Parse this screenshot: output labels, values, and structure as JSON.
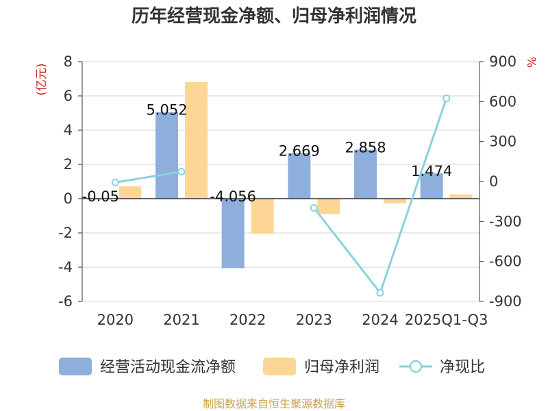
{
  "chart_data": {
    "type": "bar",
    "title": "历年经营现金净额、归母净利润情况",
    "categories": [
      "2020",
      "2021",
      "2022",
      "2023",
      "2024",
      "2025Q1-Q3"
    ],
    "series": [
      {
        "name": "经营活动现金流净额",
        "type": "bar",
        "axis": "left",
        "color": "#8eaedb",
        "values": [
          -0.05,
          5.052,
          -4.056,
          2.669,
          2.858,
          1.474
        ],
        "labels": [
          "-0.05",
          "5.052",
          "-4.056",
          "2.669",
          "2.858",
          "1.474"
        ]
      },
      {
        "name": "归母净利润",
        "type": "bar",
        "axis": "left",
        "color": "#fdd695",
        "values": [
          0.72,
          6.8,
          -2.05,
          -0.9,
          -0.28,
          0.25
        ]
      },
      {
        "name": "净现比",
        "type": "line",
        "axis": "right",
        "color": "#88d3da",
        "values": [
          -7,
          74,
          null,
          -198,
          -835,
          625
        ]
      }
    ],
    "y_left": {
      "unit": "(亿元)",
      "min": -6,
      "max": 8,
      "ticks": [
        -6,
        -4,
        -2,
        0,
        2,
        4,
        6,
        8
      ]
    },
    "y_right": {
      "unit": "%",
      "min": -900,
      "max": 900,
      "ticks": [
        -900,
        -600,
        -300,
        0,
        300,
        600,
        900
      ]
    },
    "legend": [
      "经营活动现金流净额",
      "归母净利润",
      "净现比"
    ],
    "source": "制图数据来自恒生聚源数据库"
  }
}
